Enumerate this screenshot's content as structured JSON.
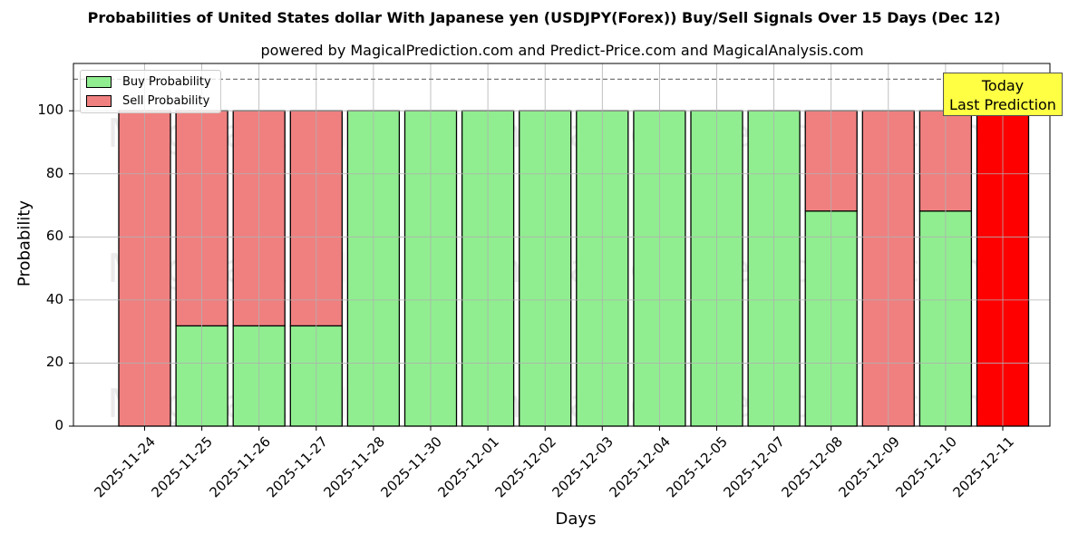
{
  "title": "Probabilities of United States dollar With Japanese yen (USDJPY(Forex)) Buy/Sell Signals Over 15 Days (Dec 12)",
  "subtitle": "powered by MagicalPrediction.com and Predict-Price.com and MagicalAnalysis.com",
  "watermarks": [
    "MagicalAnalysis.com",
    "MagicalPrediction.com"
  ],
  "annotation": {
    "line1": "Today",
    "line2": "Last Prediction"
  },
  "legend": {
    "buy": "Buy Probability",
    "sell": "Sell Probability"
  },
  "colors": {
    "buy": "#90ee90",
    "sell": "#f08080",
    "today": "#ff0000",
    "annotation_bg": "#ffff44"
  },
  "chart_data": {
    "type": "bar",
    "stacked": true,
    "title": "Probabilities of United States dollar With Japanese yen (USDJPY(Forex)) Buy/Sell Signals Over 15 Days (Dec 12)",
    "subtitle": "powered by MagicalPrediction.com and Predict-Price.com and MagicalAnalysis.com",
    "xlabel": "Days",
    "ylabel": "Probability",
    "ylim": [
      0,
      115
    ],
    "yticks": [
      0,
      20,
      40,
      60,
      80,
      100
    ],
    "grid": true,
    "legend_position": "upper left",
    "reference_line": {
      "y": 110,
      "style": "dashed"
    },
    "categories": [
      "2025-11-24",
      "2025-11-25",
      "2025-11-26",
      "2025-11-27",
      "2025-11-28",
      "2025-11-30",
      "2025-12-01",
      "2025-12-02",
      "2025-12-03",
      "2025-12-04",
      "2025-12-05",
      "2025-12-07",
      "2025-12-08",
      "2025-12-09",
      "2025-12-10",
      "2025-12-11"
    ],
    "series": [
      {
        "name": "Buy Probability",
        "values": [
          0,
          31.8,
          31.8,
          31.8,
          100,
          100,
          100,
          100,
          100,
          100,
          100,
          100,
          68.2,
          0,
          68.2,
          0
        ]
      },
      {
        "name": "Sell Probability",
        "values": [
          100,
          68.2,
          68.2,
          68.2,
          0,
          0,
          0,
          0,
          0,
          0,
          0,
          0,
          31.8,
          100,
          31.8,
          100
        ]
      }
    ],
    "highlight": {
      "category": "2025-12-11",
      "label": "Today Last Prediction",
      "color": "#ff0000"
    }
  }
}
